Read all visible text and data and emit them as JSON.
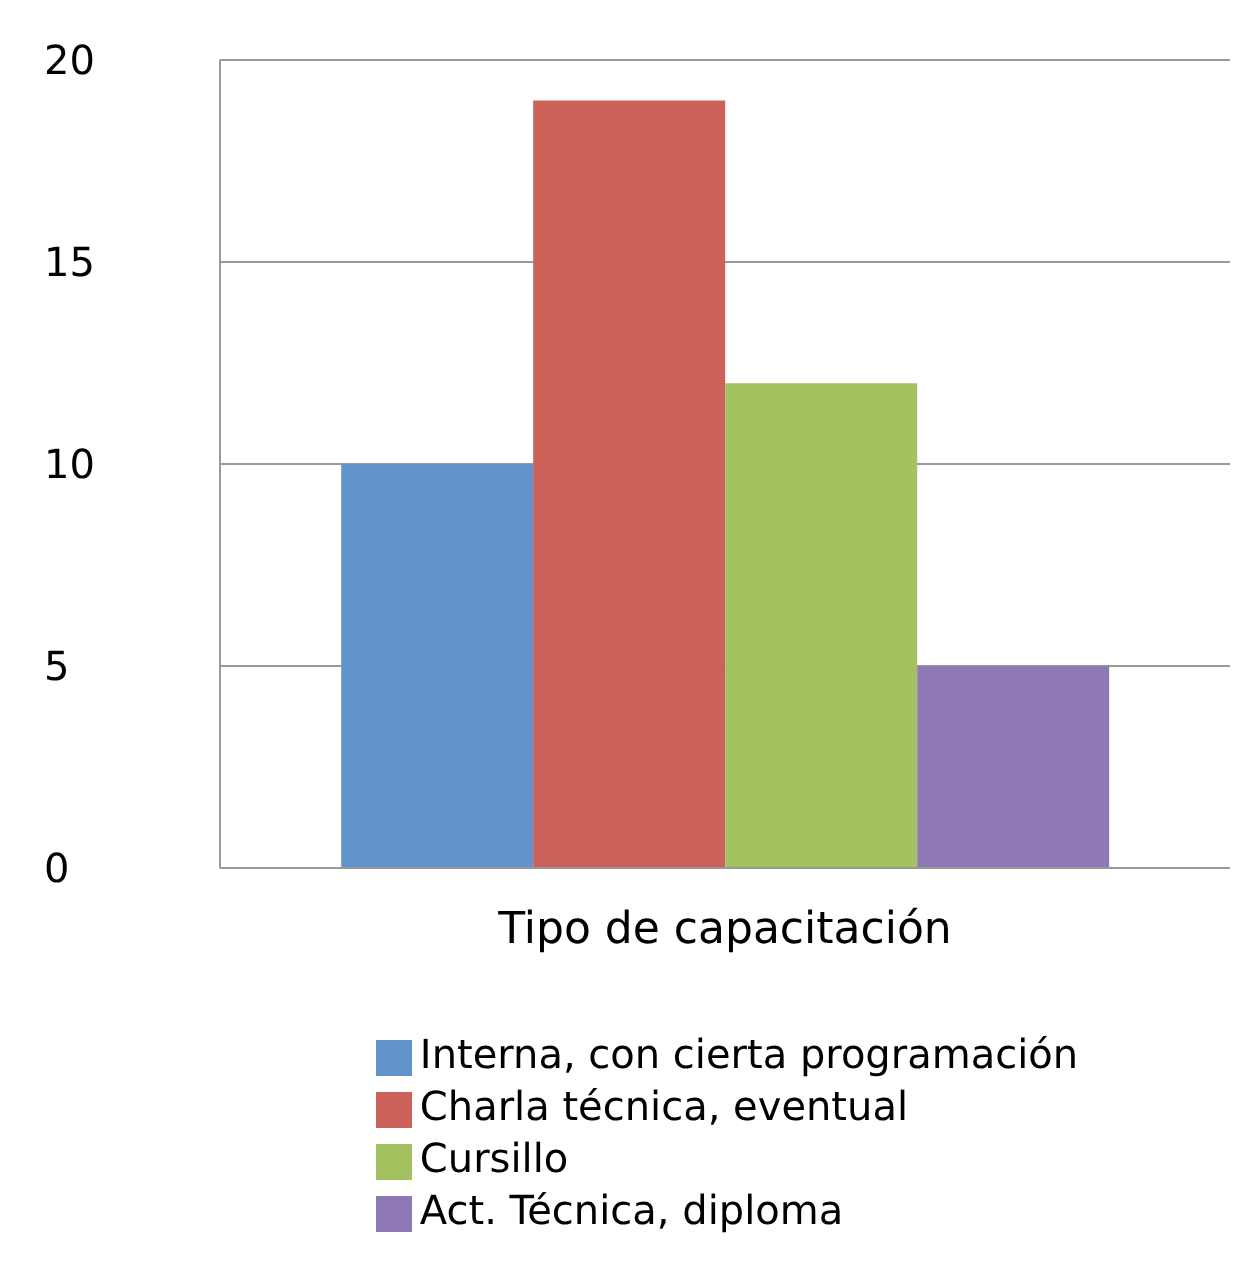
{
  "chart_data": {
    "type": "bar",
    "categories": [
      "Tipo de capacitación"
    ],
    "series": [
      {
        "name": "Interna, con cierta programación",
        "color": "#6293cc",
        "values": [
          10
        ]
      },
      {
        "name": "Charla técnica, eventual",
        "color": "#cc6159",
        "values": [
          19
        ]
      },
      {
        "name": "Cursillo",
        "color": "#a3c25f",
        "values": [
          12
        ]
      },
      {
        "name": "Act. Técnica, diploma",
        "color": "#8f79b5",
        "values": [
          5
        ]
      }
    ],
    "ylim": [
      0,
      20
    ],
    "yticks": [
      0,
      5,
      10,
      15,
      20
    ],
    "grid": "y",
    "legend": "bottom"
  }
}
